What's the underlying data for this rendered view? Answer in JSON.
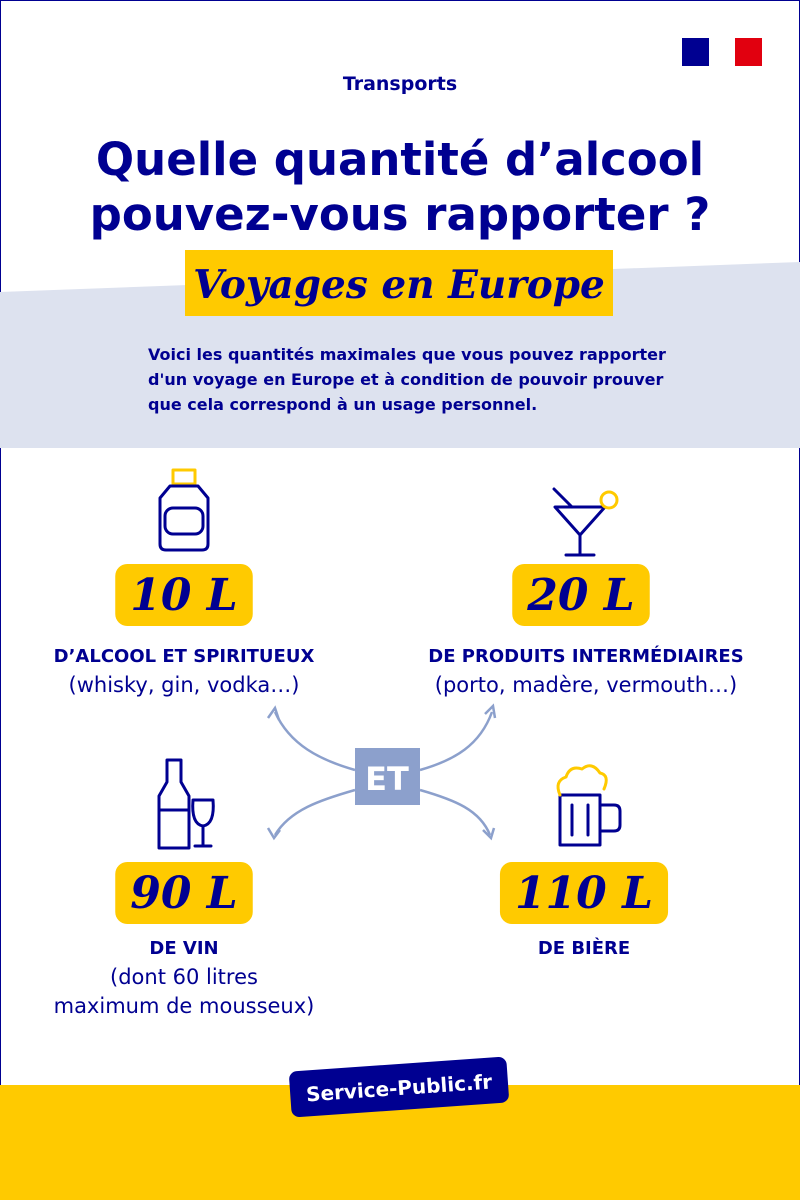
{
  "header": {
    "category": "Transports",
    "title": [
      "Quelle quantité d’alcool",
      "pouvez-vous rapporter ?"
    ],
    "subtitle": "Voyages en Europe",
    "intro": [
      "Voici les quantités maximales que vous pouvez rapporter",
      "d'un voyage en Europe et à condition de pouvoir prouver",
      "que cela correspond à un usage personnel."
    ]
  },
  "items": [
    {
      "amount": "10 L",
      "label": "D’ALCOOL ET SPIRITUEUX",
      "detail": [
        "(whisky, gin, vodka…)"
      ]
    },
    {
      "amount": "20 L",
      "label": "DE PRODUITS INTERMÉDIAIRES",
      "detail": [
        "(porto, madère, vermouth…)"
      ]
    },
    {
      "amount": "90 L",
      "label": "DE VIN",
      "detail": [
        "(dont 60 litres",
        "maximum de mousseux)"
      ]
    },
    {
      "amount": "110 L",
      "label": "DE BIÈRE",
      "detail": []
    }
  ],
  "connector": "ET",
  "footer": {
    "brand": "Service-Public.fr"
  }
}
